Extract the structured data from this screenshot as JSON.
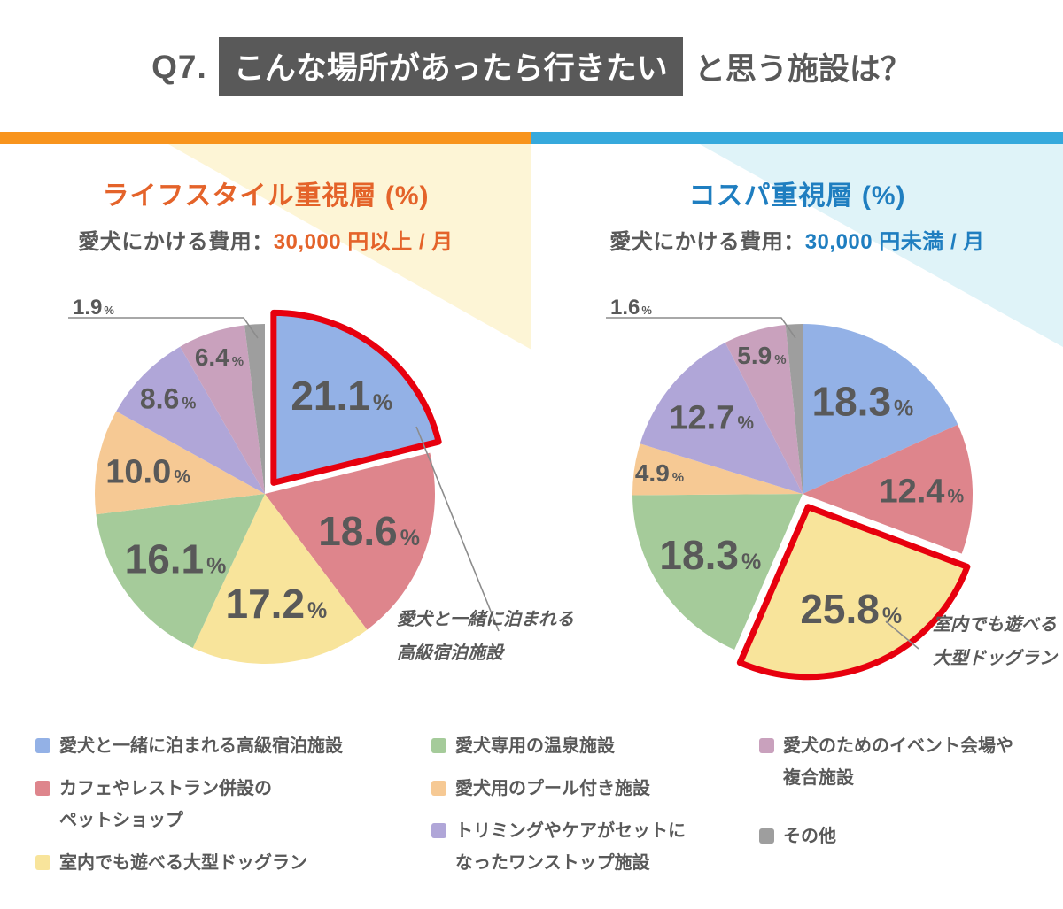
{
  "title": {
    "prefix": "Q7.",
    "highlight": "こんな場所があったら行きたい",
    "suffix": "と思う施設は？"
  },
  "theme": {
    "text_dark": "#595959",
    "bar_left": "#F8941D",
    "bar_right": "#36A9DC",
    "tint_left": "#FDF5D6",
    "tint_right": "#DFF3F8",
    "highlight_outline": "#E7000E",
    "leader_line": "#8C8C8C",
    "value_label_color": "#595959"
  },
  "chart_data": [
    {
      "type": "pie",
      "heading": "ライフスタイル重視層 (%)",
      "heading_color": "#E4632A",
      "subtitle_label": "愛犬にかける費用：",
      "subtitle_value": "30,000 円以上 / 月",
      "unit": "%",
      "legend_position": "bottom",
      "slices": [
        {
          "label": "愛犬と一緒に泊まれる高級宿泊施設",
          "value": 21.1,
          "display": "21.1",
          "color": "#93B1E6",
          "highlighted": true
        },
        {
          "label": "カフェやレストラン併設のペットショップ",
          "value": 18.6,
          "display": "18.6",
          "color": "#DE858C"
        },
        {
          "label": "室内でも遊べる大型ドッグラン",
          "value": 17.2,
          "display": "17.2",
          "color": "#F8E49B"
        },
        {
          "label": "愛犬専用の温泉施設",
          "value": 16.1,
          "display": "16.1",
          "color": "#A5CB9A"
        },
        {
          "label": "愛犬用のプール付き施設",
          "value": 10.0,
          "display": "10.0",
          "color": "#F6C994"
        },
        {
          "label": "トリミングやケアがセットになったワンストップ施設",
          "value": 8.6,
          "display": "8.6",
          "color": "#B0A6D8"
        },
        {
          "label": "愛犬のためのイベント会場や複合施設",
          "value": 6.4,
          "display": "6.4",
          "color": "#C9A1BD"
        },
        {
          "label": "その他",
          "value": 1.9,
          "display": "1.9",
          "color": "#9E9E9E"
        }
      ],
      "annotation_lines": [
        "愛犬と一緒に泊まれる",
        "高級宿泊施設"
      ]
    },
    {
      "type": "pie",
      "heading": "コスパ重視層 (%)",
      "heading_color": "#1F7EC0",
      "subtitle_label": "愛犬にかける費用：",
      "subtitle_value": "30,000 円未満 / 月",
      "unit": "%",
      "legend_position": "bottom",
      "slices": [
        {
          "label": "愛犬と一緒に泊まれる高級宿泊施設",
          "value": 18.3,
          "display": "18.3",
          "color": "#93B1E6"
        },
        {
          "label": "カフェやレストラン併設のペットショップ",
          "value": 12.4,
          "display": "12.4",
          "color": "#DE858C"
        },
        {
          "label": "室内でも遊べる大型ドッグラン",
          "value": 25.8,
          "display": "25.8",
          "color": "#F8E49B",
          "highlighted": true
        },
        {
          "label": "愛犬専用の温泉施設",
          "value": 18.3,
          "display": "18.3",
          "color": "#A5CB9A"
        },
        {
          "label": "愛犬用のプール付き施設",
          "value": 4.9,
          "display": "4.9",
          "color": "#F6C994"
        },
        {
          "label": "トリミングやケアがセットになったワンストップ施設",
          "value": 12.7,
          "display": "12.7",
          "color": "#B0A6D8"
        },
        {
          "label": "愛犬のためのイベント会場や複合施設",
          "value": 5.9,
          "display": "5.9",
          "color": "#C9A1BD"
        },
        {
          "label": "その他",
          "value": 1.6,
          "display": "1.6",
          "color": "#9E9E9E"
        }
      ],
      "annotation_lines": [
        "室内でも遊べる",
        "大型ドッグラン"
      ]
    }
  ],
  "legend": {
    "items": [
      {
        "color": "#93B1E6",
        "label": "愛犬と一緒に泊まれる高級宿泊施設",
        "lines": [
          "愛犬と一緒に泊まれる高級宿泊施設"
        ]
      },
      {
        "color": "#DE858C",
        "label": "カフェやレストラン併設のペットショップ",
        "lines": [
          "カフェやレストラン併設の",
          "ペットショップ"
        ]
      },
      {
        "color": "#F8E49B",
        "label": "室内でも遊べる大型ドッグラン",
        "lines": [
          "室内でも遊べる大型ドッグラン"
        ]
      },
      {
        "color": "#A5CB9A",
        "label": "愛犬専用の温泉施設",
        "lines": [
          "愛犬専用の温泉施設"
        ]
      },
      {
        "color": "#F6C994",
        "label": "愛犬用のプール付き施設",
        "lines": [
          "愛犬用のプール付き施設"
        ]
      },
      {
        "color": "#B0A6D8",
        "label": "トリミングやケアがセットになったワンストップ施設",
        "lines": [
          "トリミングやケアがセットに",
          "なったワンストップ施設"
        ]
      },
      {
        "color": "#C9A1BD",
        "label": "愛犬のためのイベント会場や複合施設",
        "lines": [
          "愛犬のためのイベント会場や",
          "複合施設"
        ]
      },
      {
        "color": "#9E9E9E",
        "label": "その他",
        "lines": [
          "その他"
        ]
      }
    ]
  }
}
